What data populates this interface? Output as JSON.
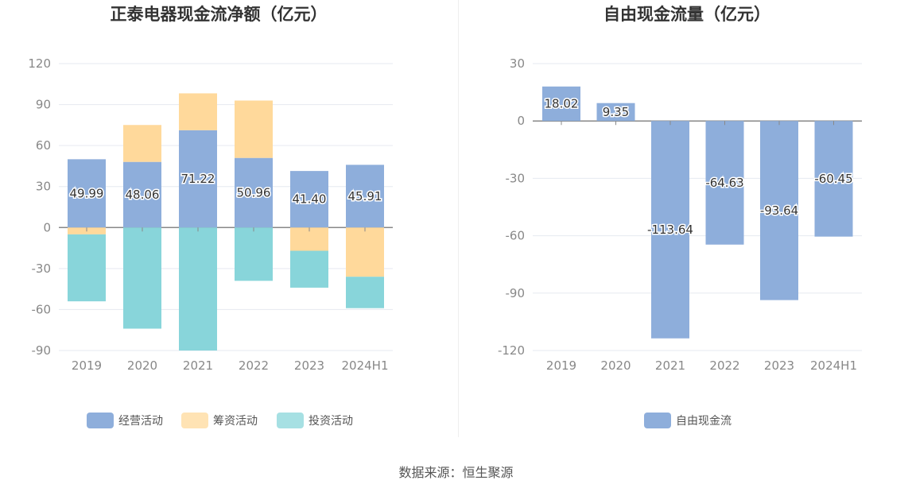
{
  "chart_data": [
    {
      "type": "bar",
      "stacked": true,
      "title": "正泰电器现金流净额（亿元）",
      "categories": [
        "2019",
        "2020",
        "2021",
        "2022",
        "2023",
        "2024H1"
      ],
      "ylim": [
        -90,
        120
      ],
      "yticks": [
        "120",
        "90",
        "60",
        "30",
        "0",
        "-30",
        "-60",
        "-90"
      ],
      "grid": true,
      "legend_position": "bottom",
      "series": [
        {
          "name": "经营活动",
          "color": "#8eaedb",
          "values": [
            49.99,
            48.06,
            71.22,
            50.96,
            41.4,
            45.91
          ],
          "labels": [
            "49.99",
            "48.06",
            "71.22",
            "50.96",
            "41.40",
            "45.91"
          ]
        },
        {
          "name": "筹资活动",
          "color": "#ffd99b",
          "values": [
            -5,
            27,
            27,
            42,
            -17,
            -36
          ]
        },
        {
          "name": "投资活动",
          "color": "#88d5da",
          "values": [
            -49,
            -74,
            -90,
            -39,
            -27,
            -23
          ]
        }
      ]
    },
    {
      "type": "bar",
      "title": "自由现金流量（亿元）",
      "categories": [
        "2019",
        "2020",
        "2021",
        "2022",
        "2023",
        "2024H1"
      ],
      "ylim": [
        -120,
        30
      ],
      "yticks": [
        "30",
        "0",
        "-30",
        "-60",
        "-90",
        "-120"
      ],
      "grid": true,
      "legend_position": "bottom",
      "series": [
        {
          "name": "自由现金流",
          "color": "#8eaedb",
          "values": [
            18.02,
            9.35,
            -113.64,
            -64.63,
            -93.64,
            -60.45
          ],
          "labels": [
            "18.02",
            "9.35",
            "-113.64",
            "-64.63",
            "-93.64",
            "-60.45"
          ]
        }
      ]
    }
  ],
  "source_text": "数据来源：恒生聚源"
}
